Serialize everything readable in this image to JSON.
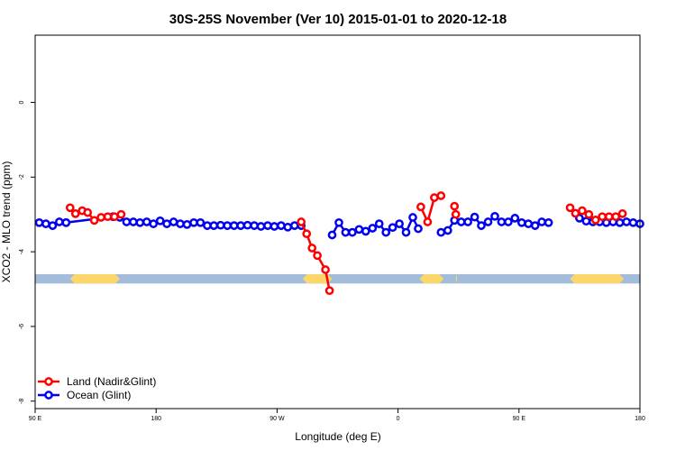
{
  "chart_data": {
    "type": "line",
    "title": "30S-25S November (Ver 10)   2015-01-01 to 2020-12-18",
    "xlabel": "Longitude (deg E)",
    "ylabel": "XCO2 - MLO trend (ppm)",
    "xlim": [
      90,
      540
    ],
    "ylim": [
      -8.2,
      1.8
    ],
    "x_ticks": [
      90,
      180,
      270,
      360,
      450,
      540
    ],
    "x_tick_labels": [
      "90 E",
      "180",
      "90 W",
      "0",
      "90 E",
      "180"
    ],
    "y_ticks": [
      0,
      -2,
      -4,
      -6,
      -8
    ],
    "y_tick_labels": [
      "0",
      "-2",
      "-4",
      "-6",
      "-8"
    ],
    "legend": {
      "position": "bottom-left",
      "entries": [
        {
          "label": "Land (Nadir&Glint)",
          "color": "#ff0000"
        },
        {
          "label": "Ocean (Glint)",
          "color": "#0000ee"
        }
      ]
    },
    "land_band": {
      "y_range": [
        -4.85,
        -4.6
      ],
      "ocean_color": "#a3bcd9",
      "land_color": "#fbd66a",
      "land_segments": [
        [
          116,
          153
        ],
        [
          289,
          311
        ],
        [
          376,
          394
        ],
        [
          403,
          404
        ],
        [
          488,
          528
        ]
      ]
    },
    "series": [
      {
        "name": "Ocean (Glint)",
        "color": "#0000ee",
        "segments": [
          [
            [
              93,
              -3.22
            ],
            [
              98,
              -3.25
            ],
            [
              103,
              -3.3
            ],
            [
              108,
              -3.2
            ],
            [
              113,
              -3.22
            ]
          ],
          [
            [
              113,
              -3.22
            ],
            [
              148,
              -3.06
            ]
          ],
          [
            [
              148,
              -3.06
            ],
            [
              153,
              -3.08
            ],
            [
              158,
              -3.2
            ],
            [
              163,
              -3.2
            ],
            [
              168,
              -3.22
            ],
            [
              173,
              -3.2
            ],
            [
              178,
              -3.25
            ],
            [
              183,
              -3.17
            ],
            [
              188,
              -3.25
            ],
            [
              193,
              -3.2
            ],
            [
              198,
              -3.25
            ],
            [
              203,
              -3.27
            ],
            [
              208,
              -3.22
            ],
            [
              213,
              -3.22
            ],
            [
              218,
              -3.3
            ],
            [
              223,
              -3.3
            ],
            [
              228,
              -3.29
            ],
            [
              233,
              -3.3
            ],
            [
              238,
              -3.3
            ],
            [
              243,
              -3.3
            ],
            [
              248,
              -3.29
            ],
            [
              253,
              -3.3
            ],
            [
              258,
              -3.32
            ],
            [
              263,
              -3.3
            ],
            [
              268,
              -3.32
            ],
            [
              273,
              -3.3
            ],
            [
              278,
              -3.34
            ],
            [
              283,
              -3.3
            ],
            [
              288,
              -3.3
            ]
          ],
          [
            [
              311,
              -3.55
            ],
            [
              316,
              -3.22
            ],
            [
              321,
              -3.48
            ],
            [
              326,
              -3.48
            ],
            [
              331,
              -3.4
            ],
            [
              336,
              -3.45
            ],
            [
              341,
              -3.37
            ],
            [
              346,
              -3.25
            ],
            [
              351,
              -3.48
            ],
            [
              356,
              -3.35
            ],
            [
              361,
              -3.25
            ],
            [
              366,
              -3.48
            ],
            [
              371,
              -3.08
            ],
            [
              375,
              -3.38
            ]
          ],
          [
            [
              392,
              -3.48
            ],
            [
              397,
              -3.43
            ],
            [
              402,
              -3.16
            ],
            [
              407,
              -3.2
            ],
            [
              412,
              -3.2
            ],
            [
              417,
              -3.07
            ],
            [
              422,
              -3.3
            ],
            [
              427,
              -3.2
            ],
            [
              432,
              -3.05
            ],
            [
              437,
              -3.2
            ],
            [
              442,
              -3.2
            ],
            [
              447,
              -3.1
            ],
            [
              452,
              -3.22
            ],
            [
              457,
              -3.25
            ],
            [
              462,
              -3.3
            ],
            [
              467,
              -3.2
            ],
            [
              472,
              -3.22
            ]
          ],
          [
            [
              495,
              -3.1
            ],
            [
              500,
              -3.18
            ],
            [
              505,
              -3.2
            ],
            [
              510,
              -3.2
            ],
            [
              515,
              -3.22
            ],
            [
              520,
              -3.2
            ],
            [
              525,
              -3.22
            ],
            [
              530,
              -3.2
            ],
            [
              535,
              -3.22
            ],
            [
              540,
              -3.25
            ]
          ]
        ]
      },
      {
        "name": "Land (Nadir&Glint)",
        "color": "#ff0000",
        "segments": [
          [
            [
              116,
              -2.82
            ],
            [
              120,
              -2.98
            ],
            [
              125,
              -2.9
            ],
            [
              129,
              -2.95
            ],
            [
              134,
              -3.16
            ],
            [
              139,
              -3.08
            ],
            [
              144,
              -3.06
            ],
            [
              149,
              -3.06
            ],
            [
              154,
              -3.0
            ]
          ],
          [
            [
              288,
              -3.2
            ],
            [
              292,
              -3.52
            ],
            [
              296,
              -3.9
            ],
            [
              300,
              -4.1
            ],
            [
              306,
              -4.48
            ],
            [
              309,
              -5.04
            ]
          ],
          [
            [
              377,
              -2.8
            ],
            [
              382,
              -3.2
            ],
            [
              387,
              -2.55
            ],
            [
              392,
              -2.5
            ]
          ],
          [
            [
              402,
              -2.78
            ],
            [
              403,
              -3.0
            ]
          ],
          [
            [
              488,
              -2.82
            ],
            [
              492,
              -2.97
            ],
            [
              497,
              -2.9
            ],
            [
              502,
              -3.0
            ],
            [
              507,
              -3.15
            ],
            [
              512,
              -3.06
            ],
            [
              517,
              -3.06
            ],
            [
              522,
              -3.06
            ],
            [
              527,
              -2.98
            ]
          ]
        ]
      }
    ]
  }
}
